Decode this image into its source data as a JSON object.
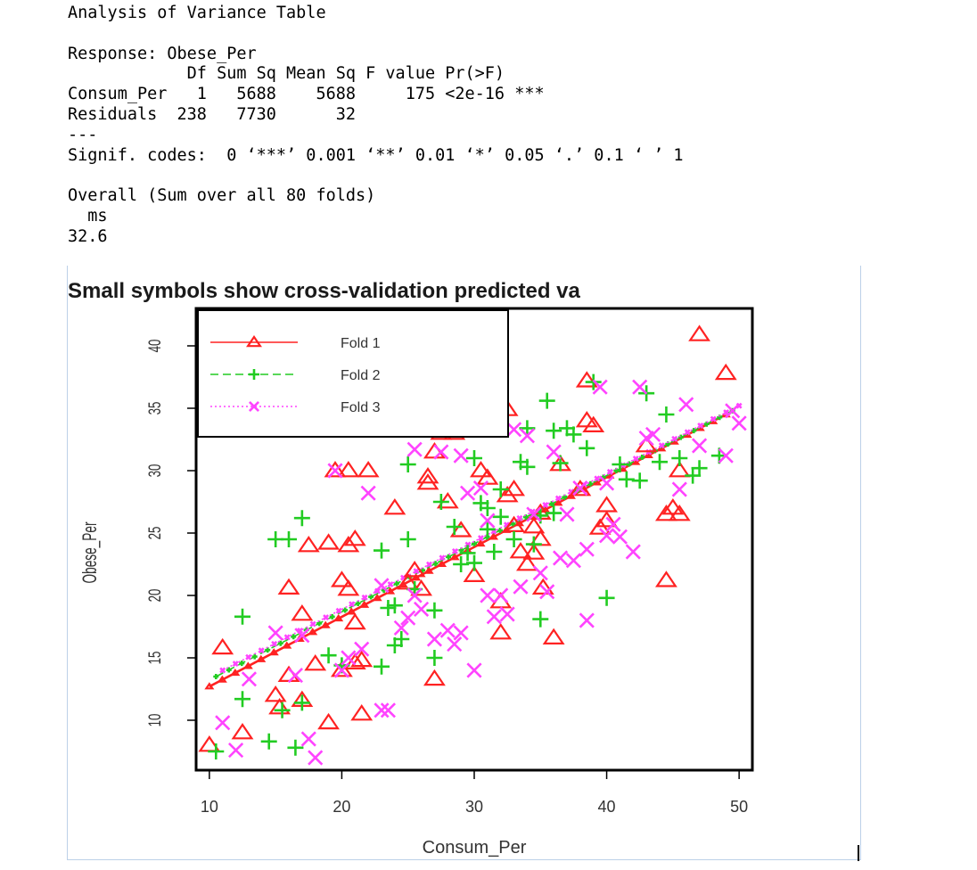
{
  "console": {
    "lines": [
      "Analysis of Variance Table",
      "",
      "Response: Obese_Per",
      "            Df Sum Sq Mean Sq F value Pr(>F)",
      "Consum_Per   1   5688    5688     175 <2e-16 ***",
      "Residuals  238   7730      32",
      "---",
      "Signif. codes:  0 ‘***’ 0.001 ‘**’ 0.01 ‘*’ 0.05 ‘.’ 0.1 ‘ ’ 1",
      "",
      "Overall (Sum over all 80 folds)",
      "  ms",
      "32.6"
    ]
  },
  "chart_data": {
    "type": "scatter",
    "title": "Small symbols show cross-validation predicted va",
    "xlabel": "Consum_Per",
    "ylabel": "Obese_Per",
    "xlim": [
      9,
      51
    ],
    "ylim": [
      6,
      43
    ],
    "xticks": [
      10,
      20,
      30,
      40,
      50
    ],
    "yticks": [
      10,
      15,
      20,
      25,
      30,
      35,
      40
    ],
    "legend_position": "top-left",
    "colors": {
      "fold1": "#ff2222",
      "fold2": "#22cc22",
      "fold3": "#ff44ff"
    },
    "series": [
      {
        "name": "Fold 1",
        "marker": "triangle",
        "fit_line": [
          [
            10,
            12.7
          ],
          [
            49,
            34.5
          ]
        ],
        "points": [
          [
            10,
            8
          ],
          [
            11,
            15.8
          ],
          [
            12.5,
            9
          ],
          [
            15,
            12
          ],
          [
            15.3,
            11
          ],
          [
            16,
            13.6
          ],
          [
            16,
            20.6
          ],
          [
            17,
            18.5
          ],
          [
            17,
            11.6
          ],
          [
            17.5,
            24
          ],
          [
            18,
            14.5
          ],
          [
            19,
            9.8
          ],
          [
            19,
            24.2
          ],
          [
            19.5,
            30
          ],
          [
            20,
            14
          ],
          [
            20,
            21.2
          ],
          [
            20.5,
            24
          ],
          [
            20.5,
            30
          ],
          [
            20.5,
            20.5
          ],
          [
            21,
            17.8
          ],
          [
            21,
            14.6
          ],
          [
            21,
            24.5
          ],
          [
            21.5,
            14.8
          ],
          [
            21.5,
            10.5
          ],
          [
            22,
            30
          ],
          [
            24,
            27
          ],
          [
            25,
            21
          ],
          [
            25.5,
            22
          ],
          [
            26,
            20.5
          ],
          [
            26.5,
            29.5
          ],
          [
            26.5,
            29
          ],
          [
            27,
            31.5
          ],
          [
            27,
            13.3
          ],
          [
            28,
            27.5
          ],
          [
            27.5,
            33
          ],
          [
            28.5,
            33
          ],
          [
            29,
            25.2
          ],
          [
            30,
            21.6
          ],
          [
            30.5,
            30
          ],
          [
            31,
            29.4
          ],
          [
            32,
            17
          ],
          [
            32,
            19.5
          ],
          [
            32.5,
            28
          ],
          [
            32.5,
            34.9
          ],
          [
            33,
            28.5
          ],
          [
            33,
            25.6
          ],
          [
            33.5,
            23.5
          ],
          [
            34,
            22.5
          ],
          [
            34.5,
            23.4
          ],
          [
            34.5,
            25.5
          ],
          [
            35,
            24.5
          ],
          [
            35.2,
            20.6
          ],
          [
            35,
            26.6
          ],
          [
            36,
            16.6
          ],
          [
            36.5,
            30.5
          ],
          [
            38,
            28.5
          ],
          [
            38.5,
            34
          ],
          [
            38.5,
            37.2
          ],
          [
            39,
            33.6
          ],
          [
            39.5,
            25.4
          ],
          [
            40,
            26
          ],
          [
            40,
            27.2
          ],
          [
            43,
            32
          ],
          [
            44.5,
            21.2
          ],
          [
            44.5,
            26.5
          ],
          [
            45,
            27
          ],
          [
            45.5,
            26.5
          ],
          [
            45.5,
            30
          ],
          [
            47,
            40.9
          ],
          [
            49,
            37.8
          ]
        ]
      },
      {
        "name": "Fold 2",
        "marker": "plus",
        "fit_line": [
          [
            10.5,
            13.5
          ],
          [
            49.5,
            34.8
          ]
        ],
        "points": [
          [
            10.5,
            7.5
          ],
          [
            12.5,
            18.3
          ],
          [
            12.5,
            11.7
          ],
          [
            14.5,
            8.3
          ],
          [
            15,
            24.5
          ],
          [
            15.5,
            10.8
          ],
          [
            16,
            24.5
          ],
          [
            16.5,
            7.8
          ],
          [
            17,
            26.2
          ],
          [
            17,
            11.4
          ],
          [
            19,
            15.2
          ],
          [
            20,
            14.4
          ],
          [
            23,
            14.3
          ],
          [
            23,
            23.6
          ],
          [
            23.5,
            19
          ],
          [
            24,
            16
          ],
          [
            24,
            19.2
          ],
          [
            24.5,
            16.5
          ],
          [
            25,
            30.5
          ],
          [
            25,
            24.5
          ],
          [
            25.5,
            20.5
          ],
          [
            27,
            15
          ],
          [
            27,
            18.8
          ],
          [
            27.5,
            27.5
          ],
          [
            28.5,
            25.5
          ],
          [
            29,
            22.5
          ],
          [
            29.5,
            23.4
          ],
          [
            30,
            31
          ],
          [
            30,
            22.6
          ],
          [
            30.5,
            27.4
          ],
          [
            31,
            27
          ],
          [
            31,
            25.3
          ],
          [
            31.5,
            23.5
          ],
          [
            32,
            28.5
          ],
          [
            32,
            26.3
          ],
          [
            33,
            24.5
          ],
          [
            33.5,
            30.7
          ],
          [
            34,
            33.4
          ],
          [
            34,
            30.3
          ],
          [
            34.5,
            24.1
          ],
          [
            35,
            18.1
          ],
          [
            35,
            26.4
          ],
          [
            35.5,
            35.6
          ],
          [
            36,
            26.6
          ],
          [
            36,
            33.2
          ],
          [
            36.5,
            30.6
          ],
          [
            37,
            33.4
          ],
          [
            37.5,
            32.9
          ],
          [
            38.5,
            31.8
          ],
          [
            39,
            37.1
          ],
          [
            40,
            19.8
          ],
          [
            41,
            30.5
          ],
          [
            41.5,
            29.3
          ],
          [
            42.5,
            29.2
          ],
          [
            43,
            36.2
          ],
          [
            44,
            30.7
          ],
          [
            44.5,
            34.5
          ],
          [
            45.5,
            31
          ],
          [
            46.5,
            29.6
          ],
          [
            47,
            30.2
          ],
          [
            48.5,
            31.2
          ]
        ]
      },
      {
        "name": "Fold 3",
        "marker": "x",
        "fit_line": [
          [
            11,
            14
          ],
          [
            50,
            35.2
          ]
        ],
        "points": [
          [
            11,
            9.8
          ],
          [
            12,
            7.6
          ],
          [
            13,
            13.3
          ],
          [
            15,
            17
          ],
          [
            16.5,
            13.6
          ],
          [
            17,
            16.8
          ],
          [
            17.5,
            8.5
          ],
          [
            18,
            7
          ],
          [
            19.5,
            30
          ],
          [
            20,
            14
          ],
          [
            20.5,
            15
          ],
          [
            21.5,
            15.7
          ],
          [
            22,
            28.2
          ],
          [
            23,
            10.8
          ],
          [
            23,
            20.8
          ],
          [
            23.5,
            10.8
          ],
          [
            24.5,
            17.4
          ],
          [
            25,
            18.2
          ],
          [
            25.5,
            20
          ],
          [
            25.5,
            31.7
          ],
          [
            26,
            18.9
          ],
          [
            27,
            16.5
          ],
          [
            27.5,
            31.5
          ],
          [
            28,
            17.2
          ],
          [
            28.5,
            16.1
          ],
          [
            29,
            31.2
          ],
          [
            29,
            17
          ],
          [
            29.5,
            28.2
          ],
          [
            30,
            14
          ],
          [
            30.5,
            28.6
          ],
          [
            31,
            20
          ],
          [
            31,
            26
          ],
          [
            31.5,
            18.3
          ],
          [
            32,
            20
          ],
          [
            32.5,
            18.5
          ],
          [
            33,
            33.3
          ],
          [
            33.5,
            20.7
          ],
          [
            34,
            32.8
          ],
          [
            34.5,
            26.5
          ],
          [
            35,
            21.8
          ],
          [
            35.5,
            20.3
          ],
          [
            36,
            31.5
          ],
          [
            36.5,
            23
          ],
          [
            37,
            26.5
          ],
          [
            37.5,
            22.8
          ],
          [
            38,
            28.6
          ],
          [
            38.5,
            18
          ],
          [
            38.5,
            23.7
          ],
          [
            39.5,
            36.7
          ],
          [
            40,
            29
          ],
          [
            40,
            24.8
          ],
          [
            40.5,
            25.7
          ],
          [
            41,
            24.7
          ],
          [
            42,
            23.5
          ],
          [
            42.5,
            36.7
          ],
          [
            43,
            32.6
          ],
          [
            43.5,
            32.9
          ],
          [
            45.5,
            28.5
          ],
          [
            46,
            35.3
          ],
          [
            47,
            32
          ],
          [
            49,
            31.2
          ],
          [
            49.5,
            34.8
          ],
          [
            50,
            33.8
          ]
        ]
      }
    ]
  }
}
